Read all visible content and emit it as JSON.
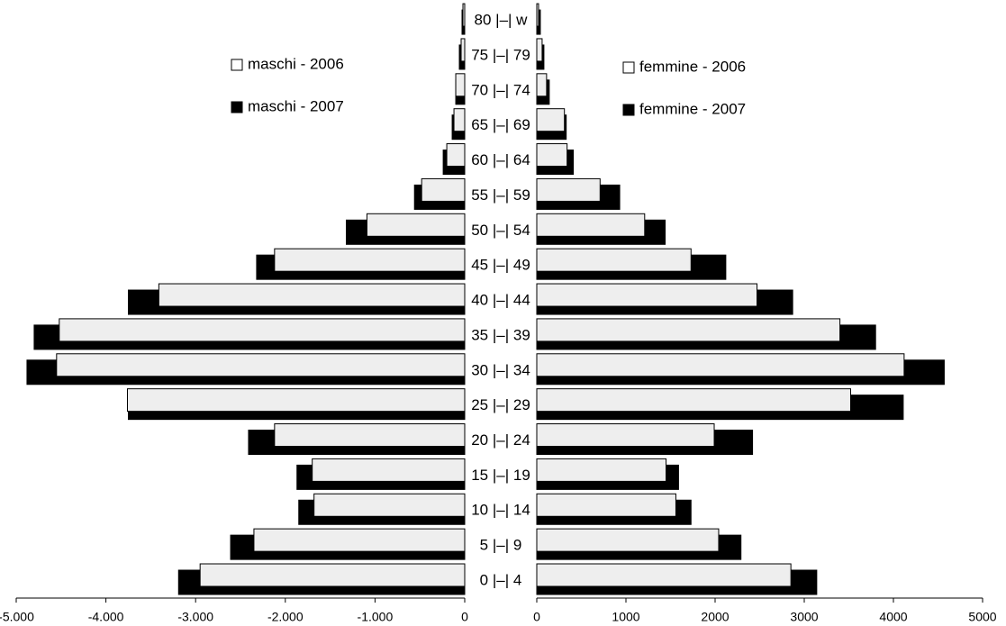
{
  "chart_data": [
    {
      "type": "bar",
      "orientation": "horizontal",
      "categories": [
        "0 |–| 4",
        "5 |–| 9",
        "10 |–| 14",
        "15 |–| 19",
        "20 |–| 24",
        "25 |–| 29",
        "30 |–| 34",
        "35 |–| 39",
        "40 |–| 44",
        "45 |–| 49",
        "50 |–| 54",
        "55 |–| 59",
        "60 |–| 64",
        "65 |–| 69",
        "70 |–| 74",
        "75 |–| 79",
        "80 |–| w"
      ],
      "series": [
        {
          "name": "maschi - 2006",
          "color": "#eeeeee",
          "values": [
            -2950,
            -2350,
            -1680,
            -1700,
            -2120,
            -3760,
            -4550,
            -4520,
            -3410,
            -2120,
            -1090,
            -480,
            -200,
            -120,
            -100,
            -40,
            -20
          ]
        },
        {
          "name": "maschi - 2007",
          "color": "#000000",
          "values": [
            -3190,
            -2610,
            -1850,
            -1870,
            -2410,
            -3750,
            -4880,
            -4800,
            -3750,
            -2320,
            -1320,
            -560,
            -240,
            -140,
            -100,
            -60,
            -30
          ]
        }
      ],
      "xlim": [
        -5000,
        0
      ],
      "xticks": [
        {
          "value": -5000,
          "label": "-5.000"
        },
        {
          "value": -4000,
          "label": "-4.000"
        },
        {
          "value": -3000,
          "label": "-3.000"
        },
        {
          "value": -2000,
          "label": "-2.000"
        },
        {
          "value": -1000,
          "label": "-1.000"
        },
        0
      ]
    },
    {
      "type": "bar",
      "orientation": "horizontal",
      "series": [
        {
          "name": "femmine - 2006",
          "color": "#eeeeee",
          "values": [
            2850,
            2040,
            1560,
            1450,
            1990,
            3520,
            4120,
            3400,
            2470,
            1730,
            1210,
            710,
            340,
            310,
            110,
            60,
            20
          ]
        },
        {
          "name": "femmine - 2007",
          "color": "#000000",
          "values": [
            3140,
            2290,
            1730,
            1590,
            2420,
            4110,
            4570,
            3800,
            2870,
            2120,
            1440,
            930,
            410,
            330,
            140,
            80,
            40
          ]
        }
      ],
      "xlim": [
        0,
        5000
      ],
      "xticks": [
        0,
        1000,
        2000,
        3000,
        4000,
        5000
      ]
    }
  ]
}
